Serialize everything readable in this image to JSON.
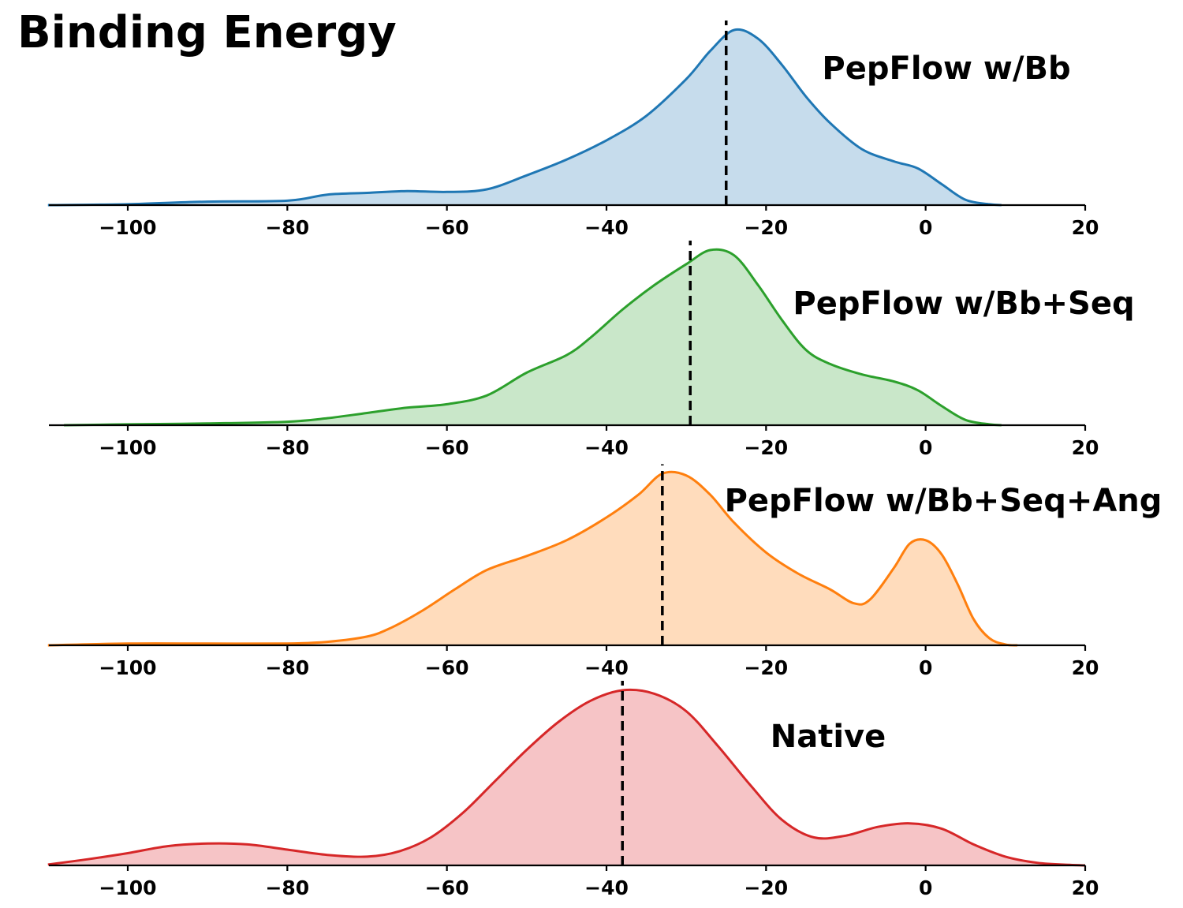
{
  "chart_data": {
    "type": "area",
    "title": "Binding Energy",
    "xlim": [
      -110,
      20
    ],
    "xticks": [
      -100,
      -80,
      -60,
      -40,
      -20,
      0,
      20
    ],
    "xtick_labels": [
      "−100",
      "−80",
      "−60",
      "−40",
      "−20",
      "0",
      "20"
    ],
    "xlabel": "",
    "ylabel": "",
    "panels": [
      {
        "name": "PepFlow w/Bb",
        "color": "#1f77b4",
        "fill": "#c6dcec",
        "median": -25,
        "density": [
          [
            -110,
            0.0
          ],
          [
            -100,
            0.005
          ],
          [
            -90,
            0.02
          ],
          [
            -80,
            0.025
          ],
          [
            -75,
            0.06
          ],
          [
            -70,
            0.07
          ],
          [
            -65,
            0.08
          ],
          [
            -60,
            0.075
          ],
          [
            -55,
            0.09
          ],
          [
            -50,
            0.17
          ],
          [
            -45,
            0.26
          ],
          [
            -40,
            0.37
          ],
          [
            -35,
            0.51
          ],
          [
            -30,
            0.72
          ],
          [
            -27,
            0.88
          ],
          [
            -24,
            1.0
          ],
          [
            -21,
            0.95
          ],
          [
            -18,
            0.8
          ],
          [
            -15,
            0.62
          ],
          [
            -12,
            0.47
          ],
          [
            -8,
            0.32
          ],
          [
            -4,
            0.25
          ],
          [
            -1,
            0.21
          ],
          [
            2,
            0.12
          ],
          [
            5,
            0.03
          ],
          [
            8,
            0.005
          ],
          [
            9.5,
            0.0
          ]
        ]
      },
      {
        "name": "PepFlow w/Bb+Seq",
        "color": "#2ca02c",
        "fill": "#c9e7c9",
        "median": -29.5,
        "density": [
          [
            -108,
            0.0
          ],
          [
            -100,
            0.005
          ],
          [
            -90,
            0.01
          ],
          [
            -80,
            0.02
          ],
          [
            -75,
            0.04
          ],
          [
            -70,
            0.07
          ],
          [
            -65,
            0.1
          ],
          [
            -60,
            0.12
          ],
          [
            -55,
            0.17
          ],
          [
            -50,
            0.3
          ],
          [
            -45,
            0.4
          ],
          [
            -42,
            0.5
          ],
          [
            -38,
            0.66
          ],
          [
            -34,
            0.8
          ],
          [
            -30,
            0.92
          ],
          [
            -27,
            1.0
          ],
          [
            -24,
            0.97
          ],
          [
            -21,
            0.8
          ],
          [
            -18,
            0.6
          ],
          [
            -15,
            0.43
          ],
          [
            -12,
            0.35
          ],
          [
            -8,
            0.29
          ],
          [
            -4,
            0.25
          ],
          [
            -1,
            0.2
          ],
          [
            2,
            0.11
          ],
          [
            5,
            0.03
          ],
          [
            8,
            0.005
          ],
          [
            9.5,
            0.0
          ]
        ]
      },
      {
        "name": "PepFlow w/Bb+Seq+Ang",
        "color": "#ff7f0e",
        "fill": "#ffdcbc",
        "median": -33,
        "density": [
          [
            -110,
            0.0
          ],
          [
            -100,
            0.01
          ],
          [
            -90,
            0.01
          ],
          [
            -80,
            0.01
          ],
          [
            -75,
            0.02
          ],
          [
            -70,
            0.05
          ],
          [
            -67,
            0.1
          ],
          [
            -63,
            0.2
          ],
          [
            -59,
            0.32
          ],
          [
            -55,
            0.43
          ],
          [
            -50,
            0.51
          ],
          [
            -45,
            0.6
          ],
          [
            -40,
            0.73
          ],
          [
            -36,
            0.86
          ],
          [
            -33,
            0.98
          ],
          [
            -30,
            0.97
          ],
          [
            -27,
            0.86
          ],
          [
            -24,
            0.7
          ],
          [
            -20,
            0.53
          ],
          [
            -16,
            0.41
          ],
          [
            -12,
            0.32
          ],
          [
            -9,
            0.24
          ],
          [
            -7,
            0.26
          ],
          [
            -4,
            0.44
          ],
          [
            -2,
            0.58
          ],
          [
            0,
            0.6
          ],
          [
            2,
            0.52
          ],
          [
            4,
            0.35
          ],
          [
            6,
            0.15
          ],
          [
            8,
            0.04
          ],
          [
            10,
            0.005
          ],
          [
            11.5,
            0.0
          ]
        ]
      },
      {
        "name": "Native",
        "color": "#d62728",
        "fill": "#f6c4c6",
        "median": -38,
        "density": [
          [
            -110,
            0.005
          ],
          [
            -105,
            0.035
          ],
          [
            -100,
            0.07
          ],
          [
            -95,
            0.11
          ],
          [
            -90,
            0.125
          ],
          [
            -85,
            0.12
          ],
          [
            -80,
            0.09
          ],
          [
            -75,
            0.06
          ],
          [
            -70,
            0.05
          ],
          [
            -66,
            0.08
          ],
          [
            -62,
            0.16
          ],
          [
            -58,
            0.3
          ],
          [
            -54,
            0.48
          ],
          [
            -50,
            0.66
          ],
          [
            -46,
            0.82
          ],
          [
            -42,
            0.94
          ],
          [
            -38,
            1.0
          ],
          [
            -34,
            0.98
          ],
          [
            -30,
            0.88
          ],
          [
            -26,
            0.68
          ],
          [
            -22,
            0.46
          ],
          [
            -18,
            0.26
          ],
          [
            -14,
            0.16
          ],
          [
            -10,
            0.17
          ],
          [
            -6,
            0.22
          ],
          [
            -2,
            0.24
          ],
          [
            2,
            0.21
          ],
          [
            6,
            0.12
          ],
          [
            10,
            0.05
          ],
          [
            14,
            0.015
          ],
          [
            18,
            0.003
          ],
          [
            20,
            0.0
          ]
        ]
      }
    ]
  }
}
